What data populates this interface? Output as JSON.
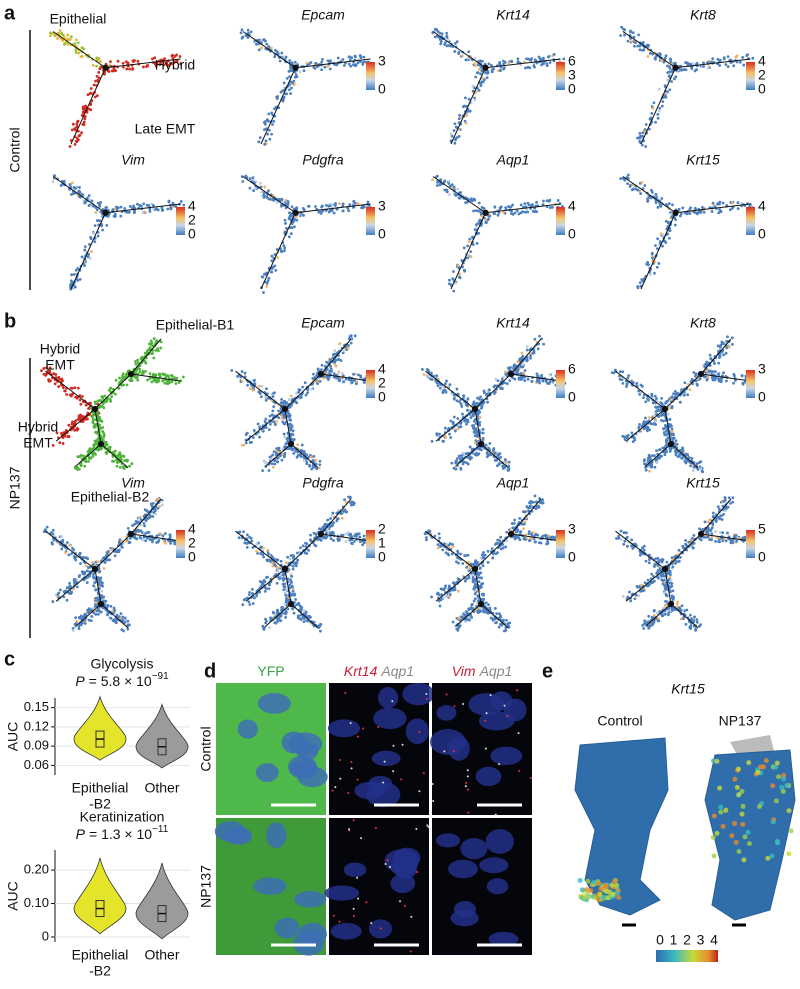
{
  "panel_a": {
    "letter": "a",
    "group": "Control",
    "annotations": [
      [
        "Epithelial"
      ],
      [
        "Hybrid"
      ],
      [
        "Late EMT"
      ]
    ],
    "plots": [
      {
        "gene": "Epcam",
        "scale": [
          "3",
          "0"
        ]
      },
      {
        "gene": "Krt14",
        "scale": [
          "6",
          "3",
          "0"
        ]
      },
      {
        "gene": "Krt8",
        "scale": [
          "4",
          "2",
          "0"
        ]
      },
      {
        "gene": "Vim",
        "scale": [
          "4",
          "2",
          "0"
        ]
      },
      {
        "gene": "Pdgfra",
        "scale": [
          "3",
          "0"
        ]
      },
      {
        "gene": "Aqp1",
        "scale": [
          "4",
          "0"
        ]
      },
      {
        "gene": "Krt15",
        "scale": [
          "4",
          "0"
        ]
      }
    ]
  },
  "panel_b": {
    "letter": "b",
    "group": "NP137",
    "annotations": [
      [
        "Hybrid",
        "EMT"
      ],
      [
        "Epithelial-B1"
      ],
      [
        "Hybrid",
        "EMT"
      ],
      [
        "Epithelial-B2"
      ]
    ],
    "plots": [
      {
        "gene": "Epcam",
        "scale": [
          "4",
          "2",
          "0"
        ]
      },
      {
        "gene": "Krt14",
        "scale": [
          "6",
          "0"
        ]
      },
      {
        "gene": "Krt8",
        "scale": [
          "3",
          "0"
        ]
      },
      {
        "gene": "Vim",
        "scale": [
          "4",
          "2",
          "0"
        ]
      },
      {
        "gene": "Pdgfra",
        "scale": [
          "2",
          "1",
          "0"
        ]
      },
      {
        "gene": "Aqp1",
        "scale": [
          "3",
          "0"
        ]
      },
      {
        "gene": "Krt15",
        "scale": [
          "5",
          "0"
        ]
      }
    ]
  },
  "panel_c": {
    "letter": "c",
    "plots": [
      {
        "title": "Glycolysis",
        "p_symbol": "P",
        "p_text": "= 5.8 × 10",
        "p_exponent": "−91",
        "ylabel": "AUC",
        "categories": [
          [
            "Epithelial",
            "-B2"
          ],
          [
            "Other"
          ]
        ],
        "colors": [
          "#e4e42a",
          "#9b9b9b"
        ],
        "medians": [
          0.101,
          0.089
        ],
        "ylim": [
          0.045,
          0.165
        ],
        "yticks": [
          {
            "value": 0.06,
            "label": "0.06"
          },
          {
            "value": 0.09,
            "label": "0.09"
          },
          {
            "value": 0.12,
            "label": "0.12"
          },
          {
            "value": 0.15,
            "label": "0.15"
          }
        ]
      },
      {
        "title": "Keratinization",
        "p_symbol": "P",
        "p_text": "= 1.3 × 10",
        "p_exponent": "−11",
        "ylabel": "AUC",
        "categories": [
          [
            "Epithelial",
            "-B2"
          ],
          [
            "Other"
          ]
        ],
        "colors": [
          "#e4e42a",
          "#9b9b9b"
        ],
        "medians": [
          0.085,
          0.07
        ],
        "ylim": [
          -0.015,
          0.26
        ],
        "yticks": [
          0,
          {
            "value": 0.1,
            "label": "0.10"
          },
          {
            "value": 0.2,
            "label": "0.20"
          }
        ]
      }
    ]
  },
  "panel_d": {
    "letter": "d",
    "columns": [
      [
        "YFP"
      ],
      [
        "Krt14",
        "Aqp1"
      ],
      [
        "Vim",
        "Aqp1"
      ]
    ],
    "rows": [
      "Control",
      "NP137"
    ]
  },
  "panel_e": {
    "letter": "e",
    "gene": "Krt15",
    "samples": [
      "Control",
      "NP137"
    ],
    "scale": [
      "0",
      "1",
      "2",
      "3",
      "4"
    ]
  }
}
